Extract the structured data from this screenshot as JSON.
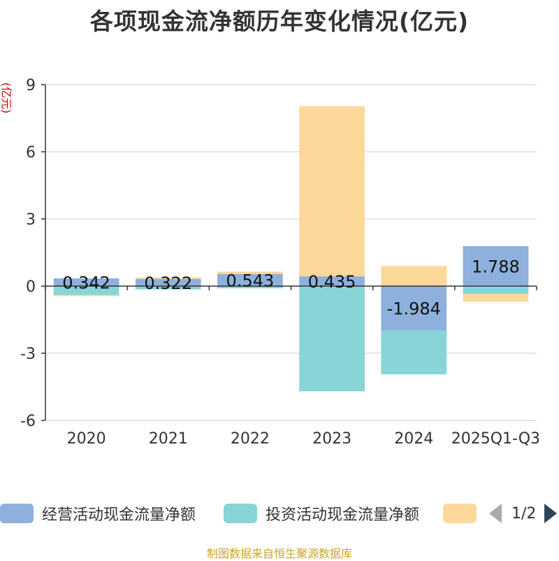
{
  "chart_data": {
    "type": "bar",
    "stacked": true,
    "title": "各项现金流净额历年变化情况(亿元)",
    "ylabel": "(亿元)",
    "xlabel": "",
    "ylim": [
      -6,
      9
    ],
    "yticks": [
      -6,
      -3,
      0,
      3,
      6,
      9
    ],
    "grid": true,
    "categories": [
      "2020",
      "2021",
      "2022",
      "2023",
      "2024",
      "2025Q1-Q3"
    ],
    "series": [
      {
        "name": "经营活动现金流量净额",
        "color": "#8eb0dc",
        "values": [
          0.342,
          0.322,
          0.543,
          0.435,
          -1.984,
          1.788
        ],
        "labels": [
          "0.342",
          "0.322",
          "0.543",
          "0.435",
          "-1.984",
          "1.788"
        ]
      },
      {
        "name": "投资活动现金流量净额",
        "color": "#88d5d8",
        "values": [
          -0.4,
          -0.15,
          -0.1,
          -4.7,
          -1.96,
          -0.35
        ]
      },
      {
        "name": "",
        "color": "#fdd89b",
        "values": [
          -0.05,
          0.06,
          0.1,
          7.6,
          0.9,
          -0.35
        ]
      }
    ]
  },
  "legend": {
    "items": [
      {
        "label": "经营活动现金流量净额",
        "color": "#8eb0dc"
      },
      {
        "label": "投资活动现金流量净额",
        "color": "#88d5d8"
      },
      {
        "label": "",
        "color": "#fdd89b"
      }
    ],
    "page_text": "1/2"
  },
  "footer": "制图数据来自恒生聚源数据库"
}
